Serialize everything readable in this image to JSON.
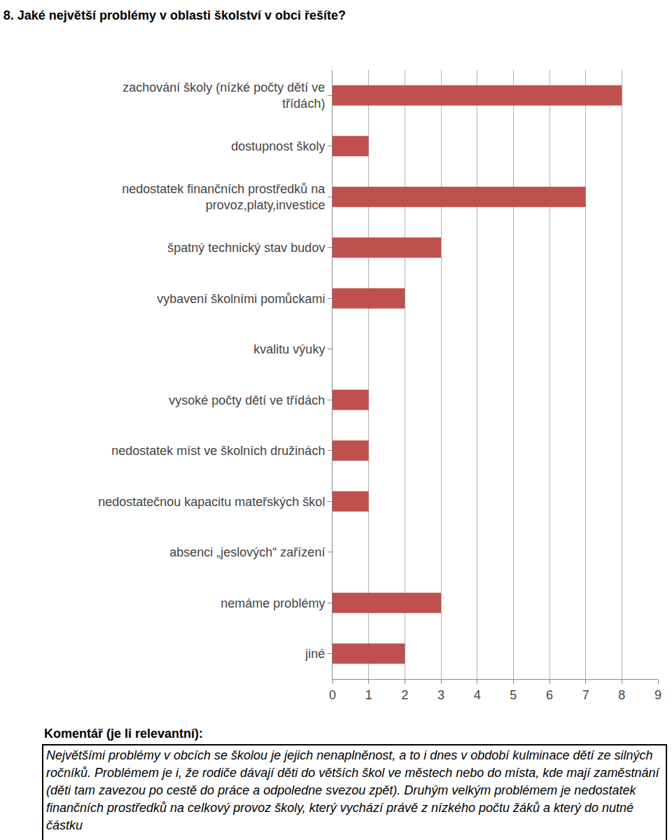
{
  "chart_data": {
    "type": "bar",
    "orientation": "horizontal",
    "title": "8. Jaké největší problémy v oblasti školství v obci řešíte?",
    "categories": [
      "zachování školy (nízké počty dětí ve třídách)",
      "dostupnost školy",
      "nedostatek finančních prostředků na provoz,platy,investice",
      "špatný technický stav budov",
      "vybavení školními pomůckami",
      "kvalitu výuky",
      "vysoké počty dětí ve třídách",
      "nedostatek míst ve školních družinách",
      "nedostatečnou kapacitu mateřských škol",
      "absenci „jeslových“ zařízení",
      "nemáme problémy",
      "jiné"
    ],
    "values": [
      8,
      1,
      7,
      3,
      2,
      0,
      1,
      1,
      1,
      0,
      3,
      2
    ],
    "color": "#c0504d",
    "xlim": [
      0,
      9
    ],
    "xticks": [
      0,
      1,
      2,
      3,
      4,
      5,
      6,
      7,
      8,
      9
    ],
    "grid": true
  },
  "comment": {
    "label": "Komentář (je li relevantní):",
    "text": "Největšími problémy v obcích se školou je jejich nenaplněnost, a to i dnes v období kulminace dětí ze silných ročníků. Problémem je i, že rodiče dávají děti do větších škol ve městech nebo do místa, kde mají zaměstnání (děti tam zavezou po cestě do práce a odpoledne svezou zpět). Druhým velkým problémem je nedostatek finančních prostředků na celkový provoz školy, který vychází právě z nízkého počtu žáků a který do nutné částku"
  }
}
